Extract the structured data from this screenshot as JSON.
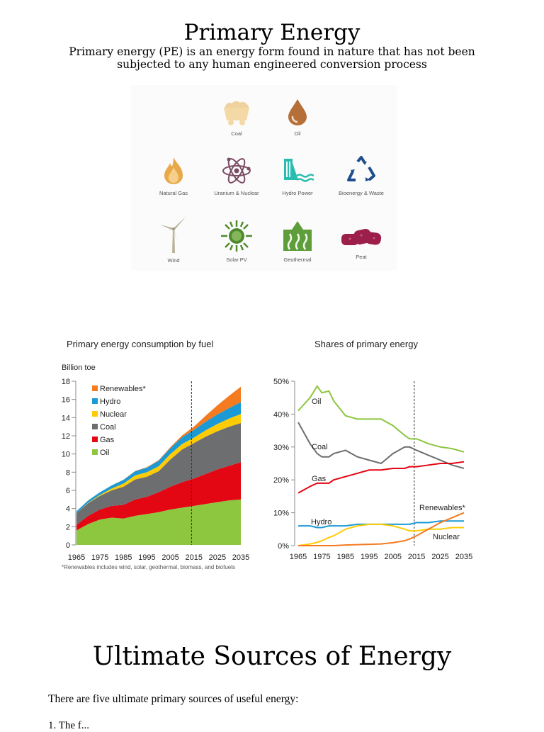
{
  "page": {
    "title": "Primary Energy",
    "subtitle": "Primary energy (PE) is an energy form found in nature that has not been subjected to any human engineered conversion process",
    "section_heading": "Ultimate Sources of Energy",
    "section_text": "There are five ultimate primary sources of useful energy:",
    "list_stub": "1.  The f..."
  },
  "icons": [
    {
      "label": "Coal",
      "icon": "coal-cart-icon",
      "color": "#f3d9a6"
    },
    {
      "label": "Oil",
      "icon": "oil-drop-icon",
      "color": "#b5703a"
    },
    {
      "label": "Natural Gas",
      "icon": "flame-icon",
      "color": "#e8a94a"
    },
    {
      "label": "Uranium & Nuclear",
      "icon": "atom-icon",
      "color": "#7a4b63"
    },
    {
      "label": "Hydro Power",
      "icon": "hydro-dam-icon",
      "color": "#2bbcb0"
    },
    {
      "label": "Bioenergy & Waste",
      "icon": "recycle-icon",
      "color": "#1f4e8c"
    },
    {
      "label": "Wind",
      "icon": "wind-turbine-icon",
      "color": "#b9b39a"
    },
    {
      "label": "Solar PV",
      "icon": "sun-icon",
      "color": "#4f8a2e"
    },
    {
      "label": "Geothermal",
      "icon": "geothermal-icon",
      "color": "#5d9e3b"
    },
    {
      "label": "Peat",
      "icon": "peat-icon",
      "color": "#9b1f4a"
    }
  ],
  "footnote": "*Renewables includes wind, solar, geothermal, biomass, and biofuels",
  "chart_data": [
    {
      "type": "area",
      "title": "Primary energy consumption by fuel",
      "ylabel": "Billion toe",
      "ylim": [
        0,
        18
      ],
      "yticks": [
        0,
        2,
        4,
        6,
        8,
        10,
        12,
        14,
        16,
        18
      ],
      "xticks": [
        "1965",
        "1975",
        "1985",
        "1995",
        "2005",
        "2015",
        "2025",
        "2035"
      ],
      "x": [
        1965,
        1970,
        1975,
        1980,
        1985,
        1990,
        1995,
        2000,
        2005,
        2010,
        2015,
        2020,
        2025,
        2030,
        2035
      ],
      "projection_start": 2014,
      "legend_position": "top-left",
      "series": [
        {
          "name": "Oil",
          "color": "#8dc63f",
          "values": [
            1.6,
            2.3,
            2.8,
            3.0,
            2.9,
            3.2,
            3.4,
            3.6,
            3.9,
            4.1,
            4.3,
            4.5,
            4.7,
            4.9,
            5.0
          ]
        },
        {
          "name": "Gas",
          "color": "#e30613",
          "values": [
            0.6,
            0.9,
            1.1,
            1.3,
            1.5,
            1.8,
            1.9,
            2.2,
            2.5,
            2.8,
            3.0,
            3.3,
            3.6,
            3.8,
            4.1
          ]
        },
        {
          "name": "Coal",
          "color": "#6d6e70",
          "values": [
            1.3,
            1.4,
            1.5,
            1.7,
            2.0,
            2.2,
            2.2,
            2.3,
            3.0,
            3.6,
            3.9,
            4.1,
            4.2,
            4.3,
            4.3
          ]
        },
        {
          "name": "Nuclear",
          "color": "#ffcb05",
          "values": [
            0.0,
            0.05,
            0.1,
            0.2,
            0.35,
            0.45,
            0.5,
            0.55,
            0.6,
            0.6,
            0.6,
            0.7,
            0.8,
            0.9,
            1.0
          ]
        },
        {
          "name": "Hydro",
          "color": "#1b9ad6",
          "values": [
            0.2,
            0.25,
            0.3,
            0.35,
            0.4,
            0.45,
            0.5,
            0.6,
            0.65,
            0.75,
            0.85,
            0.95,
            1.05,
            1.15,
            1.3
          ]
        },
        {
          "name": "Renewables*",
          "color": "#f47b20",
          "values": [
            0.0,
            0.0,
            0.0,
            0.0,
            0.02,
            0.03,
            0.05,
            0.07,
            0.1,
            0.2,
            0.35,
            0.65,
            1.0,
            1.35,
            1.7
          ]
        }
      ]
    },
    {
      "type": "line",
      "title": "Shares of primary energy",
      "ylim": [
        0,
        50
      ],
      "yticks": [
        "0%",
        "10%",
        "20%",
        "30%",
        "40%",
        "50%"
      ],
      "xticks": [
        "1965",
        "1975",
        "1985",
        "1995",
        "2005",
        "2015",
        "2025",
        "2035"
      ],
      "x": [
        1965,
        1970,
        1973,
        1975,
        1978,
        1980,
        1985,
        1990,
        1995,
        2000,
        2005,
        2010,
        2012,
        2015,
        2020,
        2025,
        2030,
        2035
      ],
      "projection_start": 2014,
      "series": [
        {
          "name": "Oil",
          "color": "#8dc63f",
          "values": [
            41,
            45,
            48.5,
            46.5,
            47,
            44,
            39.5,
            38.5,
            38.5,
            38.5,
            36.5,
            33.5,
            32.5,
            32.5,
            31,
            30,
            29.5,
            28.5
          ]
        },
        {
          "name": "Coal",
          "color": "#6d6e70",
          "values": [
            37.5,
            31,
            28,
            27,
            27,
            28,
            29,
            27,
            26,
            25,
            28,
            30,
            30,
            29,
            27.5,
            26,
            24.5,
            23.5
          ]
        },
        {
          "name": "Gas",
          "color": "#e30613",
          "values": [
            16,
            18,
            19,
            19,
            19,
            20,
            21,
            22,
            23,
            23,
            23.5,
            23.5,
            24,
            24,
            24.5,
            25,
            25,
            25.5
          ]
        },
        {
          "name": "Hydro",
          "color": "#1b9ad6",
          "values": [
            6,
            6,
            5.5,
            5.5,
            6,
            6,
            6,
            6.5,
            6.5,
            6.5,
            6.5,
            6.5,
            6.5,
            7,
            7,
            7.5,
            7.5,
            7.5
          ]
        },
        {
          "name": "Nuclear",
          "color": "#ffcb05",
          "values": [
            0,
            0.5,
            1,
            1.5,
            2.5,
            3,
            5,
            6,
            6.5,
            6.5,
            6,
            5,
            4.5,
            4.5,
            5,
            5,
            5.5,
            5.5
          ]
        },
        {
          "name": "Renewables*",
          "color": "#f47b20",
          "values": [
            0,
            0,
            0,
            0,
            0,
            0,
            0.2,
            0.3,
            0.4,
            0.5,
            0.9,
            1.5,
            2,
            3,
            5,
            7,
            8.5,
            10
          ]
        }
      ]
    }
  ]
}
